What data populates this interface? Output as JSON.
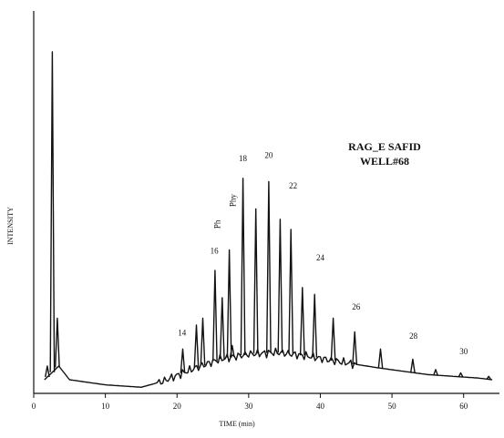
{
  "chart_data": {
    "type": "line",
    "title_lines": [
      "RAG_E SAFID",
      "WELL#68"
    ],
    "xlabel": "TIME (min)",
    "ylabel": "INTENSITY",
    "xlim": [
      0,
      65
    ],
    "x_ticks": [
      0,
      10,
      20,
      30,
      40,
      50,
      60
    ],
    "baseline_profile": [
      {
        "x": 1.5,
        "y": 4
      },
      {
        "x": 3.5,
        "y": 8
      },
      {
        "x": 5,
        "y": 4
      },
      {
        "x": 10,
        "y": 2.5
      },
      {
        "x": 15,
        "y": 1.8
      },
      {
        "x": 18,
        "y": 3.5
      },
      {
        "x": 22,
        "y": 7
      },
      {
        "x": 26,
        "y": 10
      },
      {
        "x": 30,
        "y": 11.5
      },
      {
        "x": 34,
        "y": 12
      },
      {
        "x": 38,
        "y": 11
      },
      {
        "x": 42,
        "y": 9.5
      },
      {
        "x": 48,
        "y": 7.5
      },
      {
        "x": 55,
        "y": 5.5
      },
      {
        "x": 62,
        "y": 4.5
      },
      {
        "x": 64,
        "y": 4
      }
    ],
    "peaks": [
      {
        "x": 1.9,
        "y": 8
      },
      {
        "x": 2.6,
        "y": 100
      },
      {
        "x": 3.3,
        "y": 22
      },
      {
        "x": 20.8,
        "y": 13
      },
      {
        "x": 22.7,
        "y": 20
      },
      {
        "x": 23.6,
        "y": 22
      },
      {
        "x": 25.3,
        "y": 36
      },
      {
        "x": 26.3,
        "y": 28
      },
      {
        "x": 27.3,
        "y": 42
      },
      {
        "x": 27.7,
        "y": 14
      },
      {
        "x": 29.2,
        "y": 63
      },
      {
        "x": 31.0,
        "y": 54
      },
      {
        "x": 32.8,
        "y": 62
      },
      {
        "x": 34.4,
        "y": 51
      },
      {
        "x": 35.9,
        "y": 48
      },
      {
        "x": 37.5,
        "y": 31
      },
      {
        "x": 39.2,
        "y": 29
      },
      {
        "x": 41.8,
        "y": 22
      },
      {
        "x": 44.8,
        "y": 18
      },
      {
        "x": 48.4,
        "y": 13
      },
      {
        "x": 52.9,
        "y": 10
      },
      {
        "x": 56.1,
        "y": 7
      },
      {
        "x": 59.6,
        "y": 6
      },
      {
        "x": 63.5,
        "y": 5
      }
    ],
    "peak_labels": [
      {
        "text": "14",
        "x": 20.7,
        "y": 17
      },
      {
        "text": "16",
        "x": 25.2,
        "y": 41
      },
      {
        "text": "Ph",
        "x": 26.0,
        "y": 49.5,
        "rotate": true
      },
      {
        "text": "Phy",
        "x": 28.2,
        "y": 56.5,
        "rotate": true
      },
      {
        "text": "18",
        "x": 29.2,
        "y": 68
      },
      {
        "text": "20",
        "x": 32.8,
        "y": 69
      },
      {
        "text": "22",
        "x": 36.2,
        "y": 60
      },
      {
        "text": "24",
        "x": 40.0,
        "y": 39
      },
      {
        "text": "26",
        "x": 45.0,
        "y": 24.5
      },
      {
        "text": "28",
        "x": 53.0,
        "y": 16
      },
      {
        "text": "30",
        "x": 60.0,
        "y": 11.5
      }
    ]
  }
}
